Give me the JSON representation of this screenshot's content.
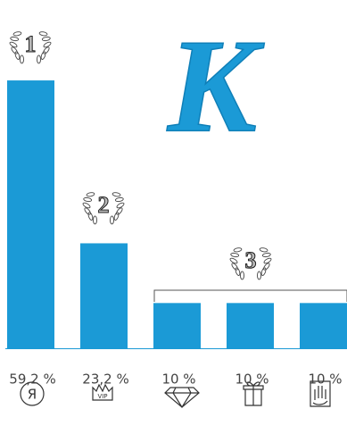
{
  "chart_data": {
    "type": "bar",
    "logo": "K",
    "categories": [
      "Я",
      "VIP",
      null,
      null,
      null
    ],
    "values": [
      59.2,
      23.2,
      10,
      10,
      10
    ],
    "value_labels": [
      "59,2 %",
      "23,2 %",
      "10 %",
      "10 %",
      "10 %"
    ],
    "annotations": [
      "1",
      "2",
      "3"
    ],
    "color": "#1b9ad6",
    "ylim": [
      0,
      60
    ]
  }
}
